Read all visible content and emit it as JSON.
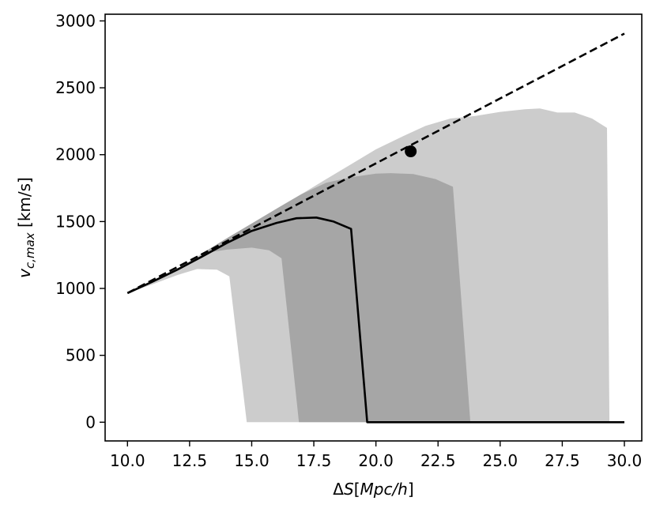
{
  "chart_data": {
    "type": "area",
    "xlabel": "ΔS[Mpc/h]",
    "ylabel": "v_{c,max} [km/s]",
    "xlim": [
      9.1,
      30.7
    ],
    "ylim": [
      -140,
      3050
    ],
    "xticks": [
      10.0,
      12.5,
      15.0,
      17.5,
      20.0,
      22.5,
      25.0,
      27.5,
      30.0
    ],
    "xtick_labels": [
      "10.0",
      "12.5",
      "15.0",
      "17.5",
      "20.0",
      "22.5",
      "25.0",
      "27.5",
      "30.0"
    ],
    "yticks": [
      0,
      500,
      1000,
      1500,
      2000,
      2500,
      3000
    ],
    "ytick_labels": [
      "0",
      "500",
      "1000",
      "1500",
      "2000",
      "2500",
      "3000"
    ],
    "grid": false,
    "series": [
      {
        "kind": "band-outer",
        "color": "#cccccc",
        "upper": [
          [
            10.0,
            965
          ],
          [
            11.0,
            1050
          ],
          [
            12.0,
            1145
          ],
          [
            13.0,
            1262
          ],
          [
            14.0,
            1375
          ],
          [
            15.0,
            1485
          ],
          [
            16.0,
            1596
          ],
          [
            17.0,
            1705
          ],
          [
            18.0,
            1818
          ],
          [
            19.0,
            1928
          ],
          [
            20.0,
            2040
          ],
          [
            21.0,
            2130
          ],
          [
            22.0,
            2215
          ],
          [
            23.0,
            2270
          ],
          [
            24.0,
            2290
          ],
          [
            25.0,
            2320
          ],
          [
            26.0,
            2340
          ],
          [
            26.6,
            2345
          ],
          [
            27.3,
            2315
          ],
          [
            28.0,
            2315
          ],
          [
            28.7,
            2270
          ],
          [
            29.3,
            2200
          ],
          [
            29.4,
            0
          ],
          [
            30.0,
            0
          ]
        ],
        "lower": [
          [
            10.0,
            965
          ],
          [
            11.0,
            1030
          ],
          [
            12.0,
            1100
          ],
          [
            12.8,
            1145
          ],
          [
            13.6,
            1140
          ],
          [
            14.1,
            1090
          ],
          [
            14.8,
            0
          ]
        ]
      },
      {
        "kind": "band-inner",
        "color": "#a6a6a6",
        "upper": [
          [
            13.0,
            1262
          ],
          [
            14.0,
            1375
          ],
          [
            15.0,
            1485
          ],
          [
            16.0,
            1596
          ],
          [
            17.0,
            1705
          ],
          [
            18.0,
            1790
          ],
          [
            19.0,
            1832
          ],
          [
            20.0,
            1858
          ],
          [
            20.6,
            1862
          ],
          [
            21.5,
            1855
          ],
          [
            22.4,
            1818
          ],
          [
            23.1,
            1760
          ],
          [
            23.8,
            0
          ]
        ],
        "lower": [
          [
            13.0,
            1262
          ],
          [
            14.0,
            1290
          ],
          [
            15.0,
            1305
          ],
          [
            15.7,
            1285
          ],
          [
            16.2,
            1225
          ],
          [
            16.9,
            0
          ]
        ]
      },
      {
        "kind": "median-line",
        "color": "#000000",
        "style": "solid",
        "points": [
          [
            10.0,
            965
          ],
          [
            11.0,
            1050
          ],
          [
            12.0,
            1140
          ],
          [
            13.0,
            1238
          ],
          [
            14.0,
            1340
          ],
          [
            15.0,
            1430
          ],
          [
            16.0,
            1490
          ],
          [
            16.8,
            1525
          ],
          [
            17.6,
            1530
          ],
          [
            18.3,
            1500
          ],
          [
            19.0,
            1445
          ],
          [
            19.65,
            0
          ],
          [
            30.0,
            0
          ]
        ]
      },
      {
        "kind": "reference-line",
        "color": "#000000",
        "style": "dashed",
        "points": [
          [
            10.0,
            965
          ],
          [
            30.0,
            2905
          ]
        ]
      },
      {
        "kind": "point",
        "color": "#000000",
        "points": [
          [
            21.4,
            2025
          ]
        ]
      }
    ]
  }
}
